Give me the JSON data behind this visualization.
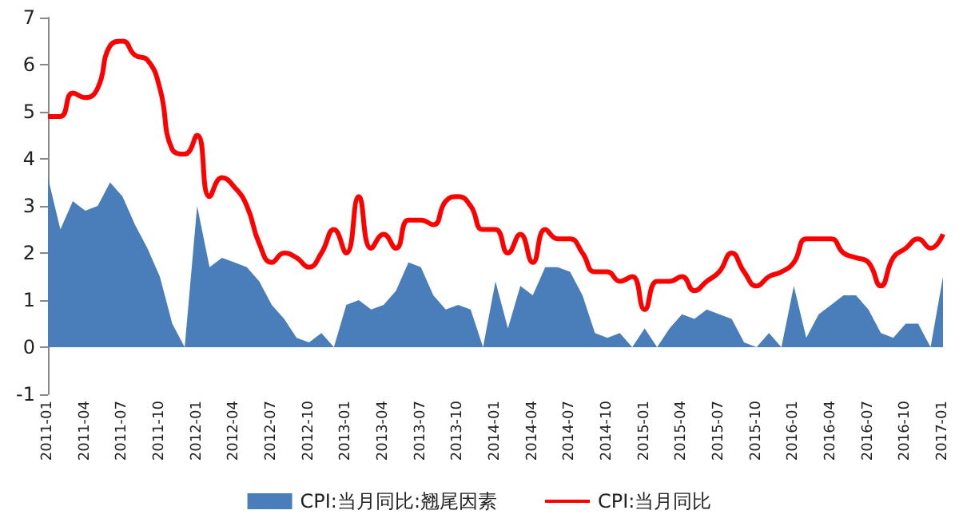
{
  "chart_data": {
    "type": "line",
    "categories": [
      "2011-01",
      null,
      null,
      "2011-04",
      null,
      null,
      "2011-07",
      null,
      null,
      "2011-10",
      null,
      null,
      "2012-01",
      null,
      null,
      "2012-04",
      null,
      null,
      "2012-07",
      null,
      null,
      "2012-10",
      null,
      null,
      "2013-01",
      null,
      null,
      "2013-04",
      null,
      null,
      "2013-07",
      null,
      null,
      "2013-10",
      null,
      null,
      "2014-01",
      null,
      null,
      "2014-04",
      null,
      null,
      "2014-07",
      null,
      null,
      "2014-10",
      null,
      null,
      "2015-01",
      null,
      null,
      "2015-04",
      null,
      null,
      "2015-07",
      null,
      null,
      "2015-10",
      null,
      null,
      "2016-01",
      null,
      null,
      "2016-04",
      null,
      null,
      "2016-07",
      null,
      null,
      "2016-10",
      null,
      null,
      "2017-01"
    ],
    "series": [
      {
        "name": "CPI:当月同比:翘尾因素",
        "type": "area",
        "color": "#4a7ebb",
        "values": [
          3.6,
          2.5,
          3.1,
          2.9,
          3.0,
          3.5,
          3.2,
          2.6,
          2.1,
          1.5,
          0.5,
          0.0,
          3.0,
          1.7,
          1.9,
          1.8,
          1.7,
          1.4,
          0.9,
          0.6,
          0.2,
          0.1,
          0.3,
          0.0,
          0.9,
          1.0,
          0.8,
          0.9,
          1.2,
          1.8,
          1.7,
          1.1,
          0.8,
          0.9,
          0.8,
          0.0,
          1.4,
          0.4,
          1.3,
          1.1,
          1.7,
          1.7,
          1.6,
          1.1,
          0.3,
          0.2,
          0.3,
          0.0,
          0.4,
          0.0,
          0.4,
          0.7,
          0.6,
          0.8,
          0.7,
          0.6,
          0.1,
          0.0,
          0.3,
          0.0,
          1.3,
          0.2,
          0.7,
          0.9,
          1.1,
          1.1,
          0.8,
          0.3,
          0.2,
          0.5,
          0.5,
          0.0,
          1.5
        ]
      },
      {
        "name": "CPI:当月同比",
        "color": "#ff0000",
        "values": [
          4.9,
          4.9,
          5.4,
          5.3,
          5.5,
          6.4,
          6.5,
          6.2,
          6.1,
          5.5,
          4.2,
          4.1,
          4.5,
          3.2,
          3.6,
          3.4,
          3.0,
          2.2,
          1.8,
          2.0,
          1.9,
          1.7,
          2.0,
          2.5,
          2.0,
          3.2,
          2.1,
          2.4,
          2.1,
          2.7,
          2.7,
          2.6,
          3.1,
          3.2,
          3.0,
          2.5,
          2.5,
          2.0,
          2.4,
          1.8,
          2.5,
          2.3,
          2.3,
          2.0,
          1.6,
          1.6,
          1.4,
          1.5,
          0.8,
          1.4,
          1.4,
          1.5,
          1.2,
          1.4,
          1.6,
          2.0,
          1.6,
          1.3,
          1.5,
          1.6,
          1.8,
          2.3,
          2.3,
          2.3,
          2.0,
          1.9,
          1.8,
          1.3,
          1.9,
          2.1,
          2.3,
          2.1,
          2.4
        ]
      }
    ],
    "ylim": [
      -1,
      7
    ],
    "yticks": [
      -1,
      0,
      1,
      2,
      3,
      4,
      5,
      6,
      7
    ],
    "grid": false,
    "legend": "bottom",
    "marker": "none",
    "line_style": "solid"
  }
}
